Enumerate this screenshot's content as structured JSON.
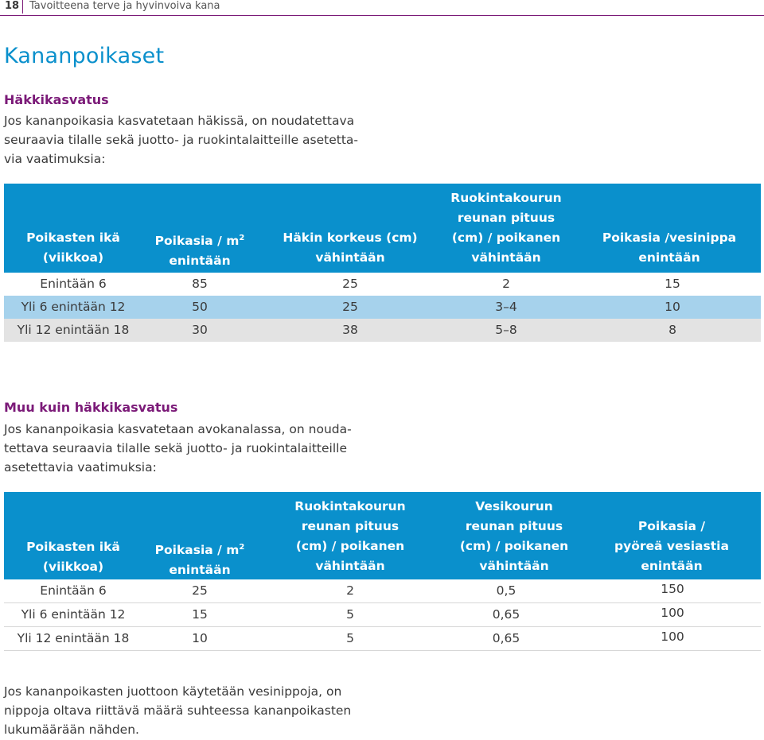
{
  "header": {
    "page_number": "18",
    "title": "Tavoitteena terve ja hyvinvoiva kana"
  },
  "page_title": "Kananpoikaset",
  "section1": {
    "heading": "Häkkikasvatus",
    "lines": [
      "Jos kananpoikasia kasvatetaan häkissä, on noudatettava",
      "seuraavia tilalle sekä juotto- ja ruokintalaitteille asetetta-",
      "via vaatimuksia:"
    ],
    "table": {
      "headers": [
        [
          "Poikasten ikä",
          "(viikkoa)"
        ],
        [
          "Poikasia / m²",
          "enintään"
        ],
        [
          "Häkin korkeus (cm)",
          "vähintään"
        ],
        [
          "Ruokintakourun",
          "reunan pituus",
          "(cm) / poikanen",
          "vähintään"
        ],
        [
          "Poikasia /vesinippa",
          "enintään"
        ]
      ],
      "rows": [
        [
          "Enintään 6",
          "85",
          "25",
          "2",
          "15"
        ],
        [
          "Yli 6 enintään 12",
          "50",
          "25",
          "3–4",
          "10"
        ],
        [
          "Yli 12 enintään 18",
          "30",
          "38",
          "5–8",
          "8"
        ]
      ]
    }
  },
  "section2": {
    "heading": "Muu kuin häkkikasvatus",
    "lines": [
      "Jos kananpoikasia kasvatetaan avokanalassa, on nouda-",
      "tettava seuraavia tilalle sekä juotto- ja ruokintalaitteille",
      "asetettavia vaatimuksia:"
    ],
    "table": {
      "headers": [
        [
          "Poikasten ikä",
          "(viikkoa)"
        ],
        [
          "Poikasia / m²",
          "enintään"
        ],
        [
          "Ruokintakourun",
          "reunan pituus",
          "(cm) / poikanen",
          "vähintään"
        ],
        [
          "Vesikourun",
          "reunan pituus",
          "(cm) / poikanen",
          "vähintään"
        ],
        [
          "Poikasia /",
          "pyöreä vesiastia",
          "enintään"
        ]
      ],
      "rows": [
        [
          "Enintään 6",
          "25",
          "2",
          "0,5",
          "150"
        ],
        [
          "Yli 6 enintään 12",
          "15",
          "5",
          "0,65",
          "100"
        ],
        [
          "Yli 12 enintään 18",
          "10",
          "5",
          "0,65",
          "100"
        ]
      ]
    }
  },
  "footer_text": {
    "lines": [
      "Jos kananpoikasten juottoon käytetään vesinippoja, on",
      "nippoja oltava riittävä määrä suhteessa kananpoikasten",
      "lukumäärään nähden."
    ]
  },
  "colors": {
    "accent_blue": "#0a90cc",
    "heading_purple": "#7b1a78",
    "row_blue": "#a6d2ec",
    "row_gray": "#e3e3e3"
  }
}
